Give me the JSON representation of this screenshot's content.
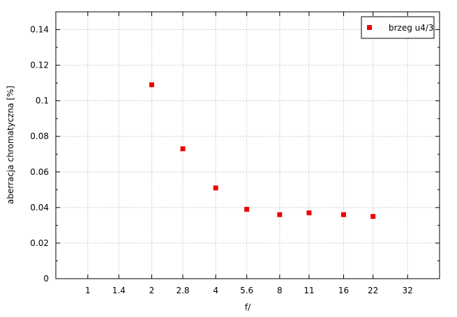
{
  "chart_data": {
    "type": "scatter",
    "xscale": "log2",
    "x_ticks": [
      1,
      1.4,
      2,
      2.8,
      4,
      5.6,
      8,
      11,
      16,
      22,
      32
    ],
    "xlim": [
      0.7071,
      45.25
    ],
    "y_ticks": [
      "0",
      "0.02",
      "0.04",
      "0.06",
      "0.08",
      "0.1",
      "0.12",
      "0.14"
    ],
    "ylim": [
      0,
      0.15
    ],
    "xlabel": "f/",
    "ylabel": "aberracja chromatyczna [%]",
    "grid": true,
    "legend_position": "top-right",
    "series": [
      {
        "name": "brzeg u4/3",
        "color": "#ee0000",
        "marker": "square",
        "x": [
          2,
          2.8,
          4,
          5.6,
          8,
          11,
          16,
          22
        ],
        "y": [
          0.109,
          0.073,
          0.051,
          0.039,
          0.036,
          0.037,
          0.036,
          0.035
        ]
      }
    ]
  }
}
